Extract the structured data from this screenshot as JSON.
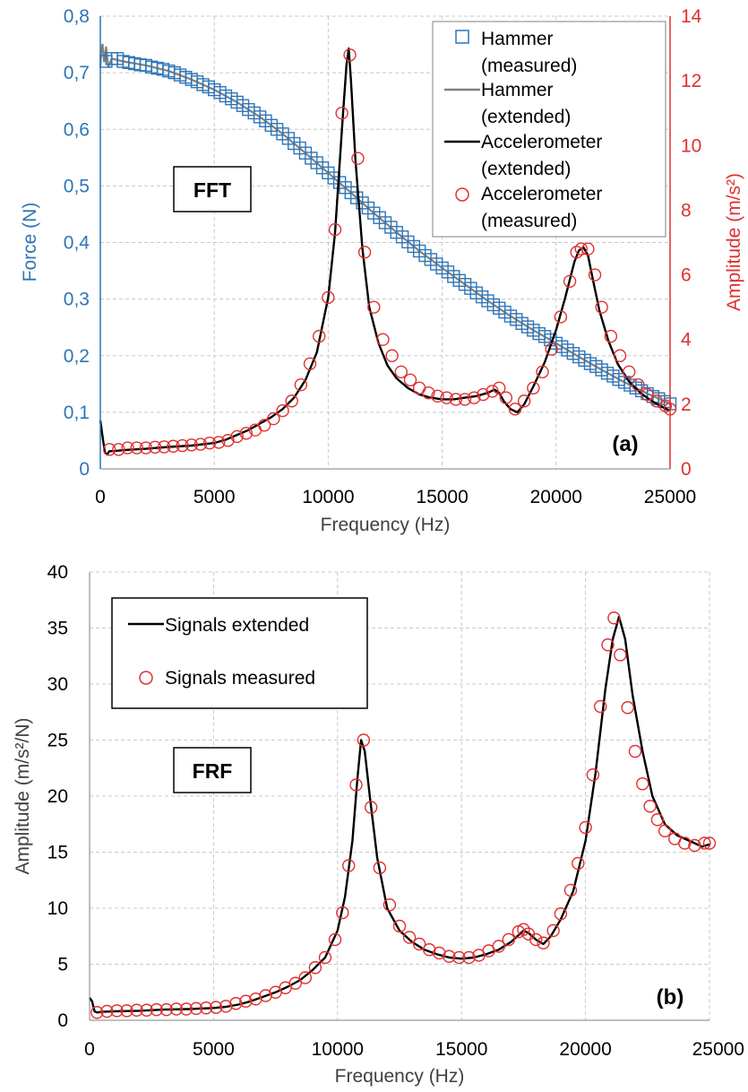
{
  "chart_data": [
    {
      "type": "line",
      "panel_label": "(a)",
      "annotation": "FFT",
      "xlabel": "Frequency (Hz)",
      "ylabel_left": "Force (N)",
      "ylabel_right": "Amplitude (m/s²)",
      "xlim": [
        0,
        25000
      ],
      "ylim_left": [
        0,
        0.8
      ],
      "ylim_right": [
        0,
        14
      ],
      "x_ticks": [
        "0",
        "5000",
        "10000",
        "15000",
        "20000",
        "25000"
      ],
      "y_ticks_left": [
        "0",
        "0,1",
        "0,2",
        "0,3",
        "0,4",
        "0,5",
        "0,6",
        "0,7",
        "0,8"
      ],
      "y_ticks_right": [
        "0",
        "2",
        "4",
        "6",
        "8",
        "10",
        "12",
        "14"
      ],
      "grid": true,
      "legend_position": "top-right",
      "legend": [
        {
          "name_line1": "Hammer",
          "name_line2": "(measured)",
          "marker": "square",
          "color": "#2e75b6"
        },
        {
          "name_line1": "Hammer",
          "name_line2": "(extended)",
          "marker": "line",
          "color": "#808080"
        },
        {
          "name_line1": "Accelerometer",
          "name_line2": "(extended)",
          "marker": "line",
          "color": "#000000"
        },
        {
          "name_line1": "Accelerometer",
          "name_line2": "(measured)",
          "marker": "circle",
          "color": "#e03030"
        }
      ],
      "series": [
        {
          "name": "Hammer (extended)",
          "axis": "left",
          "color": "#808080",
          "x": [
            0,
            50,
            100,
            160,
            250,
            350,
            500,
            1000,
            2000,
            3000,
            4000,
            5000,
            6000,
            7000,
            8000,
            9000,
            10000,
            11000,
            12000,
            13000,
            14000,
            15000,
            16000,
            17000,
            18000,
            19000,
            20000,
            21000,
            22000,
            23000,
            24000,
            25000
          ],
          "y": [
            0.71,
            0.745,
            0.75,
            0.72,
            0.745,
            0.71,
            0.725,
            0.72,
            0.713,
            0.703,
            0.688,
            0.67,
            0.648,
            0.622,
            0.592,
            0.558,
            0.523,
            0.488,
            0.452,
            0.418,
            0.385,
            0.355,
            0.326,
            0.297,
            0.27,
            0.245,
            0.222,
            0.198,
            0.175,
            0.153,
            0.133,
            0.115
          ]
        },
        {
          "name": "Hammer (measured)",
          "axis": "left",
          "color": "#2e75b6",
          "x": [
            250,
            500,
            750,
            1000,
            1250,
            1500,
            1750,
            2000,
            2250,
            2500,
            2750,
            3000,
            3250,
            3500,
            3750,
            4000,
            4250,
            4500,
            4750,
            5000,
            5250,
            5500,
            5750,
            6000,
            6250,
            6500,
            6750,
            7000,
            7250,
            7500,
            7750,
            8000,
            8250,
            8500,
            8750,
            9000,
            9250,
            9500,
            9750,
            10000,
            10250,
            10500,
            10750,
            11000,
            11250,
            11500,
            11750,
            12000,
            12250,
            12500,
            12750,
            13000,
            13250,
            13500,
            13750,
            14000,
            14250,
            14500,
            14750,
            15000,
            15250,
            15500,
            15750,
            16000,
            16250,
            16500,
            16750,
            17000,
            17250,
            17500,
            17750,
            18000,
            18250,
            18500,
            18750,
            19000,
            19250,
            19500,
            19750,
            20000,
            20250,
            20500,
            20750,
            21000,
            21250,
            21500,
            21750,
            22000,
            22250,
            22500,
            22750,
            23000,
            23250,
            23500,
            23750,
            24000,
            24250,
            24500,
            24750,
            25000
          ],
          "y": [
            0.72,
            0.725,
            0.725,
            0.72,
            0.718,
            0.716,
            0.714,
            0.713,
            0.71,
            0.708,
            0.706,
            0.703,
            0.7,
            0.696,
            0.692,
            0.688,
            0.684,
            0.679,
            0.675,
            0.67,
            0.665,
            0.659,
            0.654,
            0.648,
            0.642,
            0.635,
            0.629,
            0.622,
            0.615,
            0.607,
            0.6,
            0.592,
            0.584,
            0.575,
            0.567,
            0.558,
            0.549,
            0.541,
            0.532,
            0.523,
            0.514,
            0.506,
            0.497,
            0.488,
            0.479,
            0.47,
            0.461,
            0.452,
            0.444,
            0.435,
            0.427,
            0.418,
            0.41,
            0.401,
            0.393,
            0.385,
            0.377,
            0.37,
            0.362,
            0.355,
            0.348,
            0.34,
            0.333,
            0.326,
            0.319,
            0.311,
            0.304,
            0.297,
            0.29,
            0.284,
            0.277,
            0.27,
            0.264,
            0.257,
            0.251,
            0.245,
            0.239,
            0.234,
            0.228,
            0.222,
            0.216,
            0.21,
            0.204,
            0.198,
            0.192,
            0.186,
            0.181,
            0.175,
            0.169,
            0.164,
            0.158,
            0.153,
            0.148,
            0.143,
            0.138,
            0.133,
            0.128,
            0.124,
            0.119,
            0.115
          ]
        },
        {
          "name": "Accelerometer (extended)",
          "axis": "right",
          "color": "#000000",
          "x": [
            0,
            100,
            200,
            300,
            400,
            600,
            1000,
            2000,
            3000,
            4000,
            5000,
            5500,
            6000,
            6500,
            7000,
            7500,
            8000,
            8500,
            9000,
            9500,
            10000,
            10300,
            10600,
            10800,
            10900,
            11000,
            11200,
            11500,
            11800,
            12200,
            12600,
            13000,
            13500,
            14000,
            14500,
            15000,
            15500,
            16000,
            16500,
            17000,
            17300,
            17500,
            17700,
            18000,
            18300,
            18600,
            19000,
            19500,
            20000,
            20400,
            20800,
            21000,
            21200,
            21400,
            21600,
            21900,
            22300,
            22700,
            23200,
            23700,
            24200,
            24700,
            25000
          ],
          "y": [
            1.5,
            1.0,
            0.5,
            0.45,
            0.55,
            0.55,
            0.58,
            0.62,
            0.68,
            0.72,
            0.8,
            0.9,
            1.05,
            1.2,
            1.4,
            1.6,
            1.85,
            2.2,
            2.75,
            3.6,
            5.3,
            7.3,
            10.5,
            12.5,
            13.0,
            12.0,
            9.5,
            6.8,
            5.0,
            3.9,
            3.2,
            2.8,
            2.5,
            2.3,
            2.2,
            2.15,
            2.15,
            2.2,
            2.25,
            2.35,
            2.45,
            2.35,
            2.1,
            1.85,
            1.75,
            2.0,
            2.55,
            3.3,
            4.3,
            5.3,
            6.4,
            6.75,
            6.85,
            6.6,
            5.9,
            4.9,
            3.95,
            3.25,
            2.7,
            2.35,
            2.1,
            1.9,
            1.8
          ]
        },
        {
          "name": "Accelerometer (measured)",
          "axis": "right",
          "color": "#e03030",
          "x": [
            400,
            800,
            1200,
            1600,
            2000,
            2400,
            2800,
            3200,
            3600,
            4000,
            4400,
            4800,
            5200,
            5600,
            6000,
            6400,
            6800,
            7200,
            7600,
            8000,
            8400,
            8800,
            9200,
            9600,
            10000,
            10300,
            10600,
            10950,
            11300,
            11600,
            12000,
            12400,
            12800,
            13200,
            13600,
            14000,
            14400,
            14800,
            15200,
            15600,
            16000,
            16400,
            16800,
            17200,
            17500,
            17800,
            18200,
            18600,
            19000,
            19400,
            19800,
            20200,
            20600,
            20900,
            21100,
            21400,
            21700,
            22000,
            22400,
            22800,
            23200,
            23600,
            24000,
            24400,
            24800,
            25000
          ],
          "y": [
            0.6,
            0.6,
            0.65,
            0.65,
            0.65,
            0.67,
            0.68,
            0.7,
            0.72,
            0.74,
            0.76,
            0.8,
            0.82,
            0.88,
            1.0,
            1.1,
            1.2,
            1.35,
            1.55,
            1.8,
            2.1,
            2.6,
            3.25,
            4.1,
            5.3,
            7.4,
            11.0,
            12.8,
            9.6,
            6.7,
            5.0,
            4.0,
            3.5,
            3.0,
            2.75,
            2.5,
            2.35,
            2.25,
            2.2,
            2.15,
            2.15,
            2.2,
            2.3,
            2.4,
            2.5,
            2.2,
            1.85,
            2.1,
            2.5,
            3.0,
            3.7,
            4.7,
            5.8,
            6.7,
            6.8,
            6.8,
            6.0,
            5.0,
            4.1,
            3.5,
            3.0,
            2.6,
            2.3,
            2.1,
            1.95,
            1.85
          ]
        }
      ]
    },
    {
      "type": "line",
      "panel_label": "(b)",
      "annotation": "FRF",
      "xlabel": "Frequency (Hz)",
      "ylabel": "Amplitude (m/s²/N)",
      "xlim": [
        0,
        25000
      ],
      "ylim": [
        0,
        40
      ],
      "x_ticks": [
        "0",
        "5000",
        "10000",
        "15000",
        "20000",
        "25000"
      ],
      "y_ticks": [
        "0",
        "5",
        "10",
        "15",
        "20",
        "25",
        "30",
        "35",
        "40"
      ],
      "grid": true,
      "legend_position": "top-left",
      "legend": [
        {
          "name": "Signals extended",
          "marker": "line",
          "color": "#000000"
        },
        {
          "name": "Signals measured",
          "marker": "circle",
          "color": "#e03030"
        }
      ],
      "series": [
        {
          "name": "Signals extended",
          "color": "#000000",
          "x": [
            0,
            100,
            200,
            300,
            500,
            1000,
            2000,
            3000,
            4000,
            5000,
            5500,
            6000,
            6500,
            7000,
            7500,
            8000,
            8500,
            9000,
            9500,
            10000,
            10300,
            10600,
            10800,
            10950,
            11100,
            11300,
            11600,
            12000,
            12500,
            13000,
            13500,
            14000,
            14500,
            15000,
            15500,
            16000,
            16500,
            17000,
            17300,
            17500,
            17700,
            18000,
            18300,
            18600,
            19000,
            19500,
            20000,
            20400,
            20800,
            21100,
            21350,
            21600,
            21900,
            22300,
            22700,
            23200,
            23700,
            24200,
            24700,
            25000
          ],
          "y": [
            2.0,
            1.7,
            0.8,
            0.7,
            0.75,
            0.8,
            0.85,
            0.95,
            1.0,
            1.1,
            1.2,
            1.4,
            1.7,
            2.1,
            2.5,
            3.0,
            3.6,
            4.5,
            5.6,
            8.0,
            11.0,
            16.0,
            21.5,
            25.0,
            24.0,
            20.0,
            14.5,
            10.0,
            8.0,
            7.0,
            6.3,
            5.9,
            5.6,
            5.5,
            5.6,
            5.9,
            6.3,
            7.0,
            7.6,
            8.0,
            7.8,
            7.2,
            6.8,
            7.5,
            9.0,
            11.5,
            16.0,
            22.0,
            29.5,
            34.0,
            36.0,
            34.0,
            29.0,
            24.0,
            20.0,
            17.5,
            16.5,
            16.0,
            15.5,
            15.7
          ]
        },
        {
          "name": "Signals measured",
          "color": "#e03030",
          "x": [
            300,
            700,
            1100,
            1500,
            1900,
            2300,
            2700,
            3100,
            3500,
            3900,
            4300,
            4700,
            5100,
            5500,
            5900,
            6300,
            6700,
            7100,
            7500,
            7900,
            8300,
            8700,
            9100,
            9500,
            9900,
            10200,
            10450,
            10750,
            11050,
            11350,
            11700,
            12100,
            12500,
            12900,
            13300,
            13700,
            14100,
            14500,
            14900,
            15300,
            15700,
            16100,
            16500,
            16900,
            17300,
            17500,
            17700,
            18000,
            18300,
            18700,
            19000,
            19400,
            19700,
            20000,
            20300,
            20600,
            20900,
            21150,
            21400,
            21700,
            22000,
            22300,
            22600,
            22900,
            23200,
            23600,
            24000,
            24400,
            24800,
            25000
          ],
          "y": [
            0.7,
            0.8,
            0.85,
            0.85,
            0.9,
            0.9,
            0.95,
            0.95,
            1.0,
            1.0,
            1.05,
            1.1,
            1.15,
            1.25,
            1.5,
            1.7,
            1.9,
            2.2,
            2.5,
            2.9,
            3.3,
            3.8,
            4.7,
            5.6,
            7.2,
            9.6,
            13.8,
            21.0,
            25.0,
            19.0,
            13.6,
            10.3,
            8.4,
            7.4,
            6.8,
            6.3,
            6.0,
            5.7,
            5.6,
            5.6,
            5.8,
            6.2,
            6.6,
            7.2,
            7.9,
            8.1,
            7.7,
            7.2,
            6.9,
            8.0,
            9.5,
            11.6,
            14.0,
            17.2,
            21.9,
            28.0,
            33.5,
            35.9,
            32.6,
            27.9,
            24.0,
            21.1,
            19.1,
            17.9,
            16.9,
            16.2,
            15.8,
            15.6,
            15.8,
            15.8
          ]
        }
      ]
    }
  ]
}
